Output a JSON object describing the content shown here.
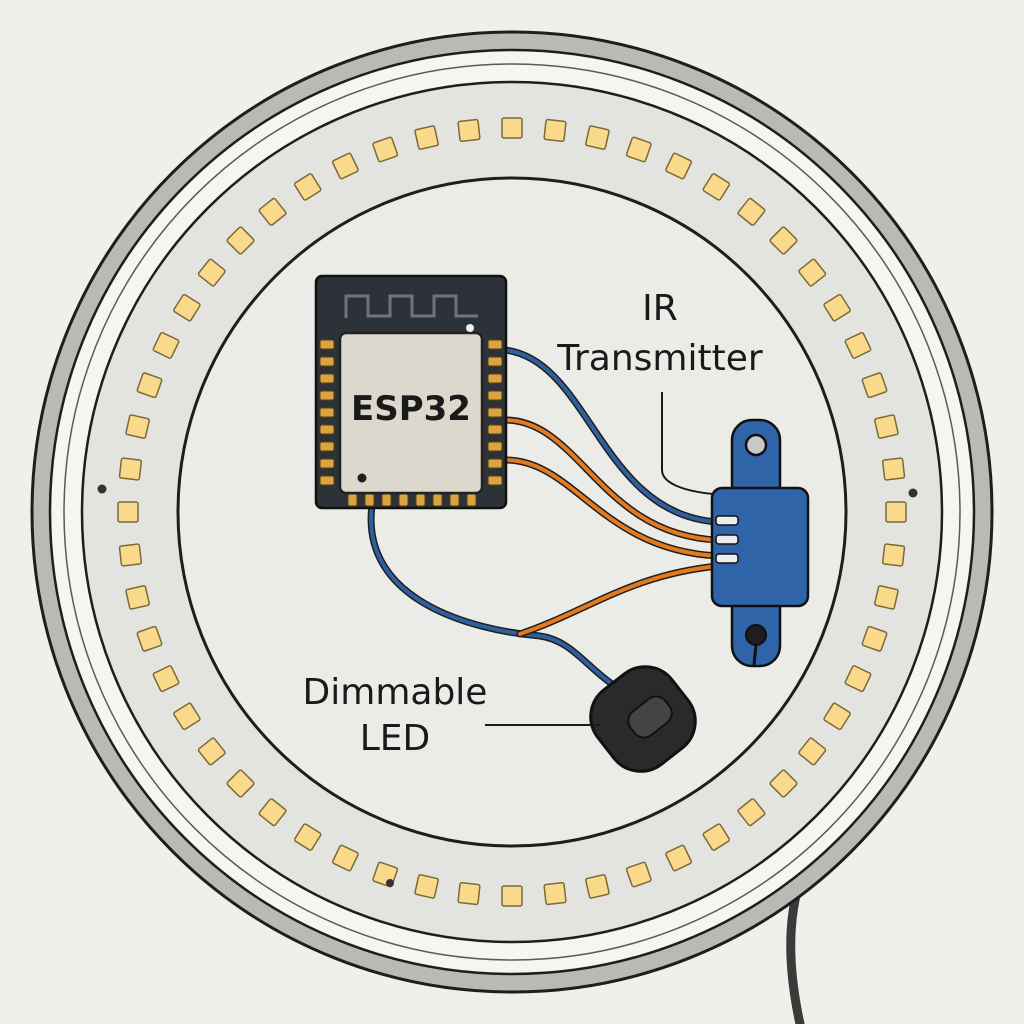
{
  "labels": {
    "chip": "ESP32",
    "ir_line1": "IR",
    "ir_line2": "Transmitter",
    "led_line1": "Dimmable",
    "led_line2": "LED"
  },
  "ring_led_count": 56,
  "colors": {
    "background": "#f1efea",
    "outer_rim": "#b9b9b6",
    "bezel": "#f5f5f2",
    "ring_band": "#e3e3df",
    "inner_panel": "#ebebe7",
    "led_fill": "#fbd98a",
    "led_edge": "#7a6a3a",
    "chip_board": "#2d3238",
    "chip_shield": "#dcd8ce",
    "pin_gold": "#d9a441",
    "wire_blue": "#2e5f9e",
    "wire_orange": "#e37a1f",
    "ir_body": "#2f64a8",
    "led_pod": "#2a2a2a",
    "text": "#1a1a1a"
  }
}
